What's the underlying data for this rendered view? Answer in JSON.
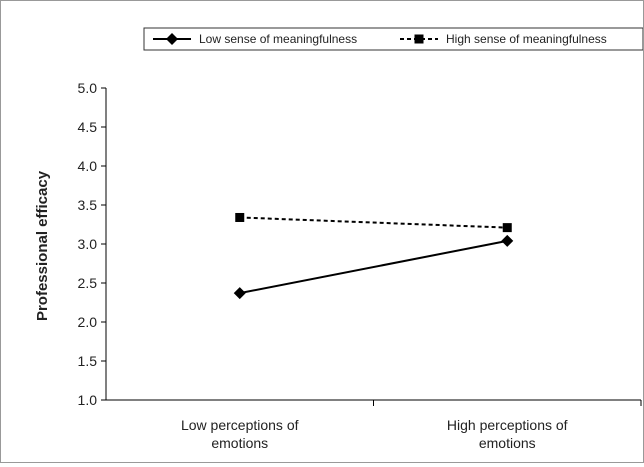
{
  "chart_data": {
    "type": "line",
    "title": "",
    "ylabel": "Professional efficacy",
    "xlabel": "",
    "ylim": [
      1.0,
      5.0
    ],
    "yticks": [
      "1.0",
      "1.5",
      "2.0",
      "2.5",
      "3.0",
      "3.5",
      "4.0",
      "4.5",
      "5.0"
    ],
    "categories": [
      [
        "Low perceptions of",
        "emotions"
      ],
      [
        "High perceptions of",
        "emotions"
      ]
    ],
    "series": [
      {
        "name": "Low sense of meaningfulness",
        "values": [
          2.37,
          3.04
        ],
        "marker": "diamond",
        "line": "solid",
        "color": "#000000"
      },
      {
        "name": "High sense of meaningfulness",
        "values": [
          3.34,
          3.21
        ],
        "marker": "square",
        "line": "dashed",
        "color": "#000000"
      }
    ],
    "legend_position": "top",
    "grid": false
  }
}
